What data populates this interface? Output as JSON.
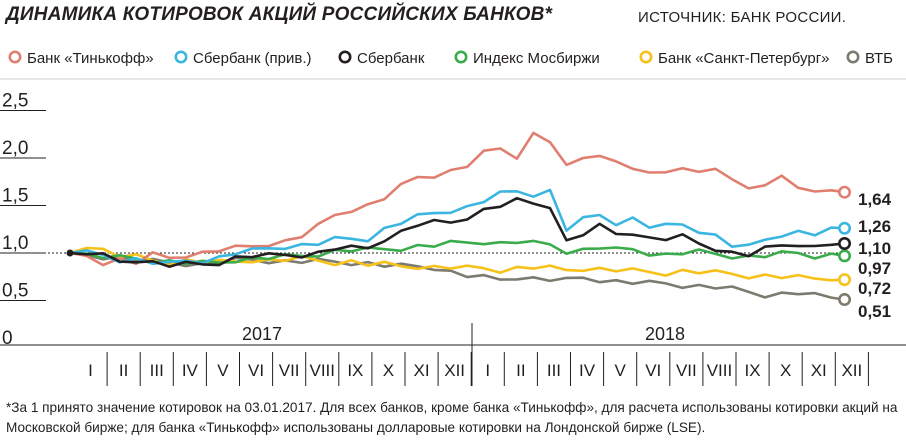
{
  "title": "ДИНАМИКА КОТИРОВОК АКЦИЙ РОССИЙСКИХ БАНКОВ*",
  "source": "ИСТОЧНИК: БАНК РОССИИ.",
  "footnote": "*За 1 принято значение котировок на 03.01.2017. Для всех банков, кроме банка «Тинькофф», для расчета использованы котировки акций на Московской бирже; для банка «Тинькофф» использованы долларовые котировки на Лондонской бирже (LSE).",
  "chart_data": {
    "type": "line",
    "ylim": [
      0,
      2.7
    ],
    "yticks": [
      {
        "value": 0,
        "label": "0"
      },
      {
        "value": 0.5,
        "label": "0,5"
      },
      {
        "value": 1.0,
        "label": "1,0"
      },
      {
        "value": 1.5,
        "label": "1,5"
      },
      {
        "value": 2.0,
        "label": "2,0"
      },
      {
        "value": 2.5,
        "label": "2,5"
      }
    ],
    "reference_line": 1.0,
    "years": [
      "2017",
      "2018"
    ],
    "months": [
      "I",
      "II",
      "III",
      "IV",
      "V",
      "VI",
      "VII",
      "VIII",
      "IX",
      "X",
      "XI",
      "XII",
      "I",
      "II",
      "III",
      "IV",
      "V",
      "VI",
      "VII",
      "VIII",
      "IX",
      "X",
      "XI",
      "XII"
    ],
    "x": [
      0,
      0.5,
      1,
      1.5,
      2,
      2.5,
      3,
      3.5,
      4,
      4.5,
      5,
      5.5,
      6,
      6.5,
      7,
      7.5,
      8,
      8.5,
      9,
      9.5,
      10,
      10.5,
      11,
      11.5,
      12,
      12.5,
      13,
      13.5,
      14,
      14.5,
      15,
      15.5,
      16,
      16.5,
      17,
      17.5,
      18,
      18.5,
      19,
      19.5,
      20,
      20.5,
      21,
      21.5,
      22,
      22.5,
      23,
      23.4
    ],
    "series": [
      {
        "name": "Банк «Тинькофф»",
        "color": "#e07f70",
        "end_label": "1,64",
        "values": [
          1.0,
          0.97,
          0.9,
          0.93,
          0.9,
          0.98,
          0.95,
          0.98,
          1.0,
          1.03,
          1.05,
          1.07,
          1.1,
          1.12,
          1.18,
          1.28,
          1.4,
          1.46,
          1.5,
          1.58,
          1.7,
          1.8,
          1.82,
          1.86,
          1.92,
          2.05,
          2.1,
          2.02,
          2.25,
          2.18,
          1.9,
          2.0,
          2.05,
          1.95,
          1.9,
          1.82,
          1.85,
          1.92,
          1.84,
          1.9,
          1.75,
          1.68,
          1.74,
          1.8,
          1.7,
          1.62,
          1.66,
          1.64
        ]
      },
      {
        "name": "Сбербанк (прив.)",
        "color": "#3ab6e0",
        "end_label": "1,26",
        "values": [
          1.0,
          1.0,
          0.98,
          0.93,
          0.93,
          0.9,
          0.88,
          0.92,
          0.92,
          0.95,
          1.0,
          1.02,
          1.05,
          1.07,
          1.08,
          1.1,
          1.14,
          1.15,
          1.15,
          1.25,
          1.32,
          1.38,
          1.42,
          1.45,
          1.48,
          1.55,
          1.62,
          1.65,
          1.62,
          1.65,
          1.25,
          1.35,
          1.4,
          1.32,
          1.36,
          1.28,
          1.28,
          1.3,
          1.24,
          1.18,
          1.08,
          1.06,
          1.14,
          1.2,
          1.22,
          1.2,
          1.24,
          1.26
        ]
      },
      {
        "name": "Сбербанк",
        "color": "#231f20",
        "end_label": "1,10",
        "values": [
          1.0,
          1.0,
          0.97,
          0.91,
          0.93,
          0.9,
          0.87,
          0.88,
          0.88,
          0.9,
          0.95,
          0.97,
          0.97,
          0.98,
          0.98,
          1.0,
          1.05,
          1.05,
          1.05,
          1.15,
          1.22,
          1.3,
          1.32,
          1.32,
          1.38,
          1.45,
          1.5,
          1.55,
          1.52,
          1.5,
          1.12,
          1.2,
          1.28,
          1.2,
          1.22,
          1.15,
          1.15,
          1.17,
          1.1,
          1.05,
          1.0,
          0.98,
          1.04,
          1.08,
          1.1,
          1.06,
          1.1,
          1.1
        ]
      },
      {
        "name": "Индекс Мосбиржи",
        "color": "#3aac4b",
        "end_label": "0,97",
        "values": [
          1.0,
          0.98,
          0.96,
          0.95,
          0.94,
          0.92,
          0.91,
          0.9,
          0.89,
          0.9,
          0.93,
          0.94,
          0.95,
          0.96,
          0.97,
          0.99,
          1.02,
          1.03,
          1.03,
          1.04,
          1.05,
          1.07,
          1.08,
          1.1,
          1.11,
          1.12,
          1.1,
          1.12,
          1.1,
          1.09,
          1.02,
          1.03,
          1.06,
          1.03,
          1.04,
          1.0,
          0.98,
          1.0,
          1.01,
          0.99,
          0.97,
          0.96,
          0.97,
          0.99,
          1.0,
          0.97,
          0.98,
          0.97
        ]
      },
      {
        "name": "Банк «Санкт-Петербург»",
        "color": "#f6c21a",
        "end_label": "0,72",
        "values": [
          1.0,
          1.08,
          1.03,
          0.97,
          0.96,
          0.92,
          0.9,
          0.92,
          0.91,
          0.9,
          0.91,
          0.93,
          0.92,
          0.93,
          0.94,
          0.92,
          0.9,
          0.91,
          0.88,
          0.88,
          0.86,
          0.86,
          0.85,
          0.85,
          0.84,
          0.84,
          0.82,
          0.84,
          0.85,
          0.84,
          0.82,
          0.84,
          0.83,
          0.82,
          0.81,
          0.8,
          0.79,
          0.81,
          0.8,
          0.79,
          0.78,
          0.76,
          0.76,
          0.75,
          0.74,
          0.73,
          0.74,
          0.72
        ]
      },
      {
        "name": "ВТБ",
        "color": "#7d7b6f",
        "end_label": "0,51",
        "values": [
          1.0,
          0.98,
          0.96,
          0.95,
          0.93,
          0.91,
          0.9,
          0.89,
          0.88,
          0.9,
          0.92,
          0.93,
          0.92,
          0.91,
          0.91,
          0.91,
          0.91,
          0.9,
          0.89,
          0.87,
          0.86,
          0.86,
          0.85,
          0.8,
          0.76,
          0.74,
          0.72,
          0.75,
          0.73,
          0.72,
          0.71,
          0.74,
          0.72,
          0.7,
          0.69,
          0.68,
          0.68,
          0.66,
          0.65,
          0.64,
          0.62,
          0.59,
          0.56,
          0.57,
          0.58,
          0.55,
          0.53,
          0.51
        ]
      }
    ]
  }
}
